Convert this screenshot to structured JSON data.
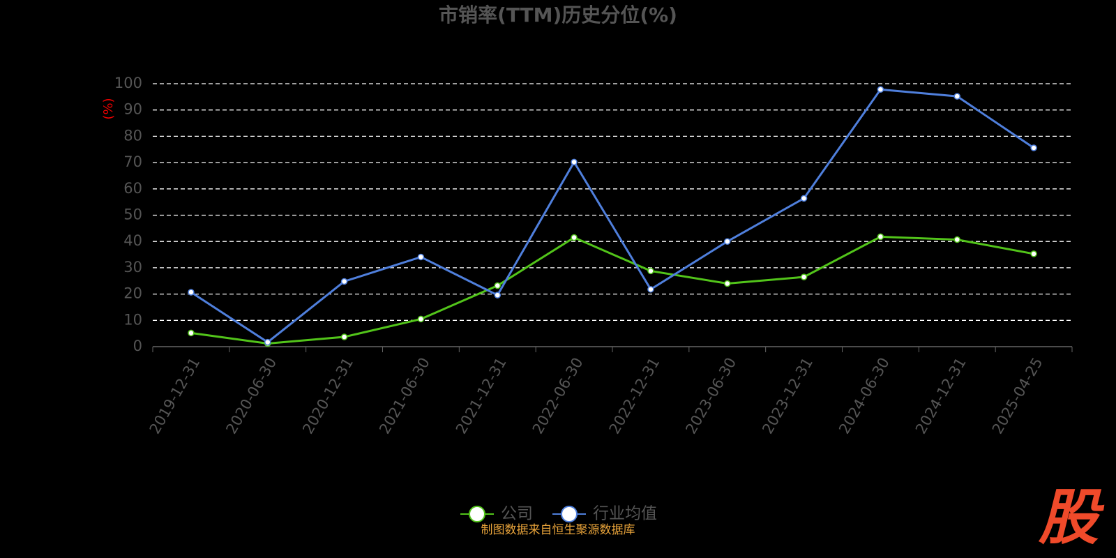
{
  "chart_data": {
    "type": "line",
    "title": "市销率(TTM)历史分位(%)",
    "y_label": "(%)",
    "categories": [
      "2019-12-31",
      "2020-06-30",
      "2020-12-31",
      "2021-06-30",
      "2021-12-31",
      "2022-06-30",
      "2022-12-31",
      "2023-06-30",
      "2023-12-31",
      "2024-06-30",
      "2024-12-31",
      "2025-04-25"
    ],
    "series": [
      {
        "name": "公司",
        "color": "#52c41a",
        "values": [
          5.2,
          1.2,
          3.7,
          10.5,
          23.2,
          41.5,
          28.8,
          24.0,
          26.5,
          41.8,
          40.7,
          35.3
        ]
      },
      {
        "name": "行业均值",
        "color": "#4f7fdc",
        "values": [
          20.7,
          1.7,
          24.8,
          34.1,
          19.6,
          70.2,
          21.8,
          40.0,
          56.4,
          97.8,
          95.2,
          75.6
        ]
      }
    ],
    "ylim": [
      0,
      100
    ],
    "yticks": [
      0,
      10,
      20,
      30,
      40,
      50,
      60,
      70,
      80,
      90,
      100
    ],
    "grid": true,
    "legend": "bottom",
    "source": "制图数据来自恒生聚源数据库",
    "watermark": "股"
  }
}
